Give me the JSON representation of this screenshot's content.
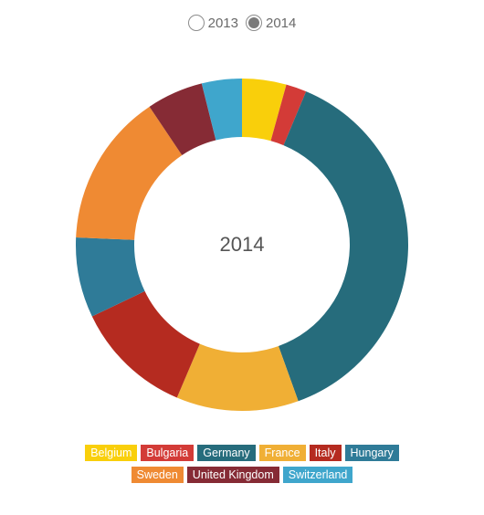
{
  "toggle": {
    "options": [
      {
        "label": "2013",
        "checked": false
      },
      {
        "label": "2014",
        "checked": true
      }
    ]
  },
  "chart_data": {
    "type": "pie",
    "style": "donut",
    "center_label": "2014",
    "categories": [
      "Belgium",
      "Bulgaria",
      "Germany",
      "France",
      "Italy",
      "Hungary",
      "Sweden",
      "United Kingdom",
      "Switzerland"
    ],
    "values": [
      4.3,
      2.0,
      38.2,
      11.9,
      11.5,
      7.8,
      14.9,
      5.5,
      3.9
    ],
    "colors": [
      "#f9cf0b",
      "#d33b37",
      "#266c7c",
      "#f0af35",
      "#b52b20",
      "#2f7b98",
      "#ef8a33",
      "#862b35",
      "#3fa6cc"
    ]
  }
}
